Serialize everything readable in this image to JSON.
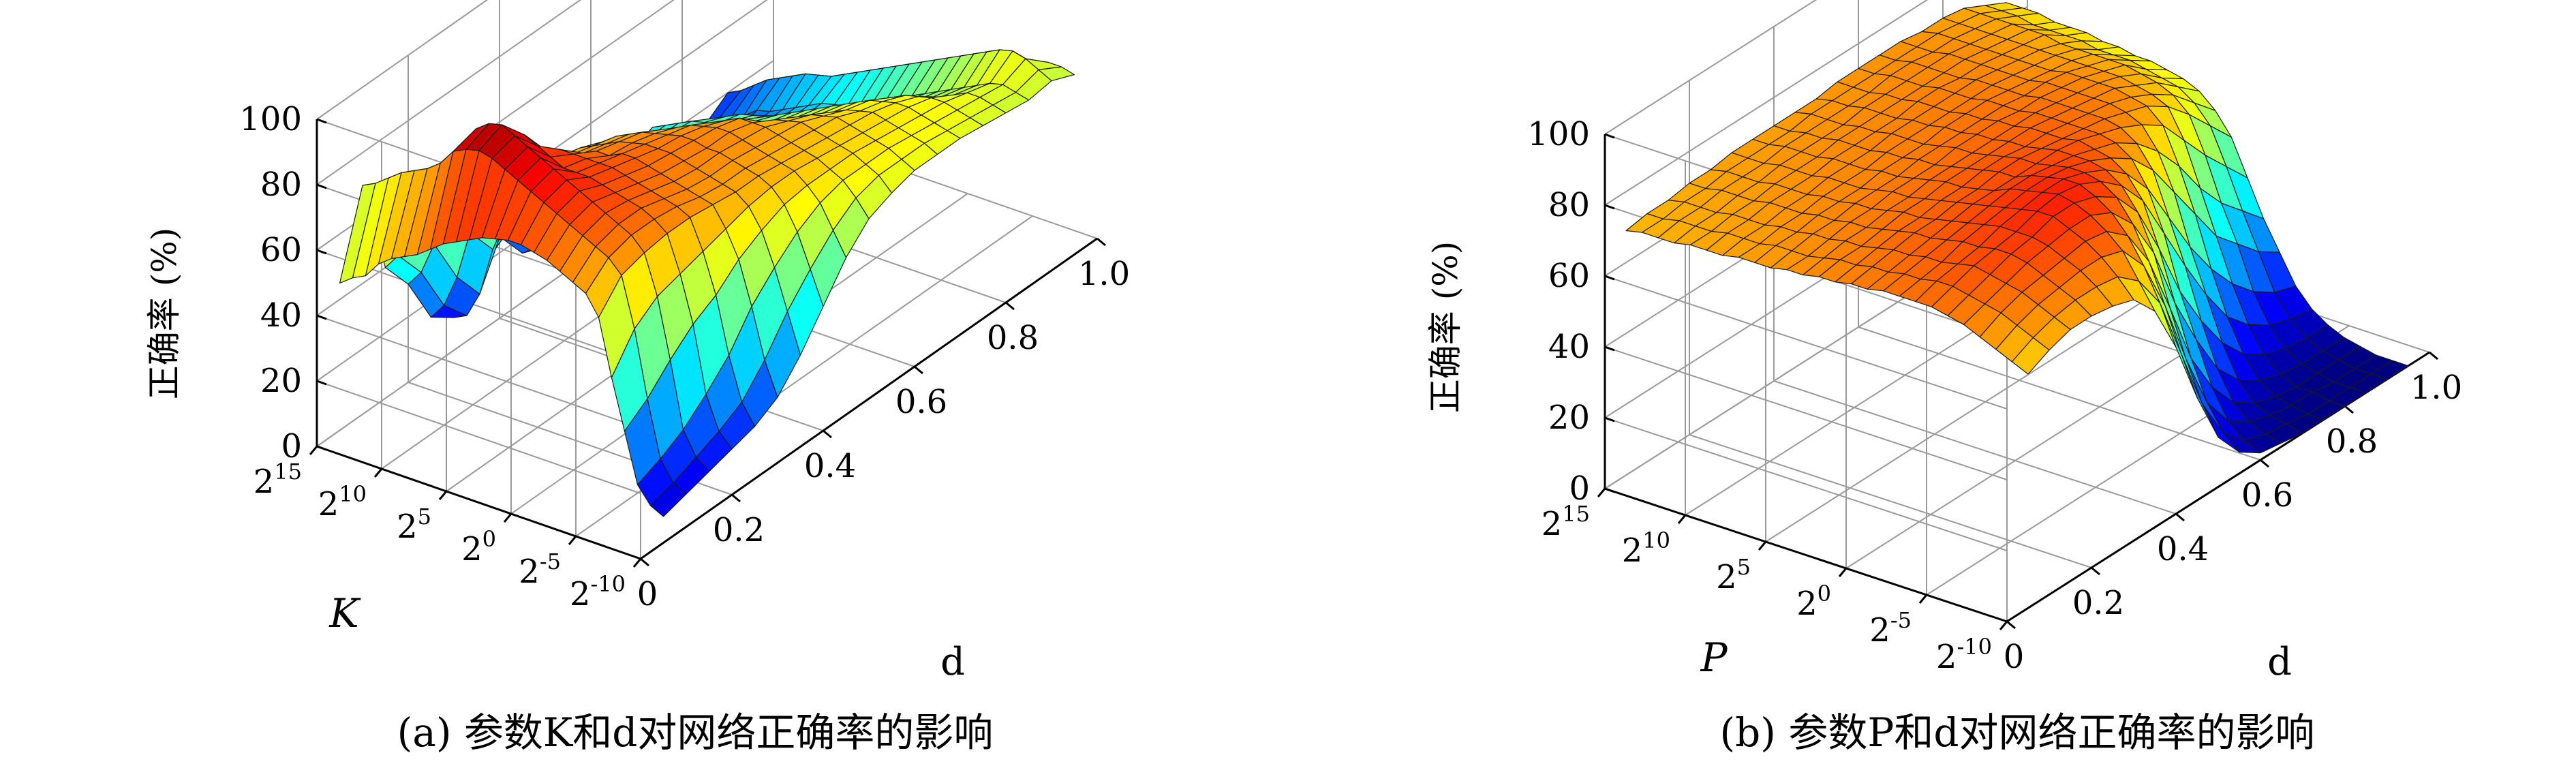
{
  "colors": {
    "grid": "#9a9a9a",
    "axis": "#000000",
    "edge": "#1a1a1a",
    "colormap": "jet"
  },
  "chart_data": [
    {
      "type": "surface3d",
      "caption": "(a) 参数K和d对网络正确率的影响",
      "zlabel": "正确率 (%)",
      "ylabel": "K",
      "xlabel": "d",
      "zlim": [
        0,
        100
      ],
      "z_ticks": [
        "0",
        "20",
        "40",
        "60",
        "80",
        "100"
      ],
      "y_ticks": [
        {
          "b": "2",
          "e": "15"
        },
        {
          "b": "2",
          "e": "10"
        },
        {
          "b": "2",
          "e": "5"
        },
        {
          "b": "2",
          "e": "0"
        },
        {
          "b": "2",
          "e": "-5"
        },
        {
          "b": "2",
          "e": "-10"
        }
      ],
      "x_ticks": [
        "0",
        "0.2",
        "0.4",
        "0.6",
        "0.8",
        "1.0"
      ],
      "d_values": [
        0.05,
        0.1,
        0.15,
        0.2,
        0.25,
        0.3,
        0.35,
        0.4,
        0.45,
        0.5,
        0.55,
        0.6,
        0.65,
        0.7,
        0.75,
        0.8,
        0.85,
        0.9,
        0.95
      ],
      "log2_param_values": [
        15,
        14,
        13,
        12,
        11,
        10,
        9,
        8,
        7,
        6,
        5,
        4,
        3,
        2,
        1,
        0,
        -1,
        -2,
        -3,
        -4,
        -5,
        -6,
        -7,
        -8,
        -9,
        -10
      ],
      "accuracy": [
        [
          45,
          70,
          40,
          30,
          15,
          10,
          20,
          25,
          15,
          12,
          15,
          20,
          25,
          20,
          15,
          10,
          15,
          20,
          10
        ],
        [
          48,
          72,
          45,
          35,
          20,
          12,
          25,
          30,
          18,
          15,
          18,
          25,
          28,
          22,
          18,
          12,
          18,
          22,
          12
        ],
        [
          50,
          75,
          55,
          45,
          30,
          20,
          35,
          35,
          25,
          20,
          22,
          30,
          32,
          28,
          22,
          15,
          20,
          25,
          15
        ],
        [
          55,
          78,
          65,
          55,
          45,
          35,
          45,
          45,
          35,
          30,
          30,
          35,
          38,
          32,
          28,
          20,
          22,
          28,
          18
        ],
        [
          58,
          80,
          72,
          65,
          55,
          45,
          50,
          50,
          42,
          38,
          35,
          40,
          40,
          35,
          30,
          22,
          25,
          30,
          20
        ],
        [
          60,
          82,
          78,
          70,
          62,
          55,
          55,
          55,
          50,
          45,
          40,
          42,
          42,
          38,
          32,
          25,
          26,
          32,
          22
        ],
        [
          62,
          85,
          85,
          75,
          68,
          62,
          60,
          58,
          55,
          50,
          45,
          45,
          44,
          40,
          35,
          28,
          28,
          34,
          24
        ],
        [
          65,
          90,
          92,
          80,
          72,
          66,
          64,
          62,
          58,
          54,
          48,
          46,
          45,
          42,
          36,
          30,
          30,
          35,
          25
        ],
        [
          68,
          92,
          95,
          85,
          76,
          70,
          68,
          65,
          62,
          58,
          52,
          48,
          46,
          44,
          38,
          32,
          32,
          36,
          26
        ],
        [
          70,
          93,
          96,
          88,
          78,
          72,
          70,
          68,
          64,
          60,
          54,
          50,
          48,
          45,
          40,
          34,
          34,
          38,
          28
        ],
        [
          72,
          92,
          94,
          86,
          80,
          74,
          72,
          70,
          66,
          62,
          56,
          52,
          50,
          46,
          42,
          36,
          35,
          40,
          30
        ],
        [
          74,
          90,
          92,
          84,
          80,
          76,
          74,
          72,
          68,
          64,
          58,
          54,
          51,
          48,
          44,
          38,
          36,
          42,
          32
        ],
        [
          75,
          88,
          90,
          82,
          80,
          76,
          75,
          73,
          70,
          66,
          60,
          56,
          52,
          50,
          46,
          40,
          38,
          44,
          34
        ],
        [
          76,
          86,
          88,
          82,
          80,
          78,
          76,
          74,
          72,
          68,
          62,
          58,
          54,
          52,
          48,
          42,
          40,
          46,
          36
        ],
        [
          76,
          84,
          86,
          82,
          80,
          78,
          76,
          75,
          73,
          70,
          64,
          60,
          56,
          54,
          50,
          44,
          42,
          48,
          38
        ],
        [
          75,
          82,
          84,
          81,
          79,
          77,
          76,
          75,
          74,
          72,
          66,
          62,
          58,
          56,
          52,
          46,
          44,
          50,
          40
        ],
        [
          74,
          80,
          82,
          80,
          78,
          76,
          75,
          74,
          74,
          72,
          68,
          64,
          60,
          58,
          54,
          48,
          46,
          52,
          42
        ],
        [
          72,
          78,
          80,
          79,
          77,
          75,
          74,
          74,
          73,
          72,
          69,
          66,
          62,
          60,
          56,
          50,
          48,
          54,
          44
        ],
        [
          70,
          76,
          78,
          78,
          76,
          74,
          73,
          73,
          72,
          71,
          70,
          67,
          64,
          62,
          58,
          52,
          50,
          56,
          46
        ],
        [
          68,
          74,
          76,
          76,
          75,
          73,
          72,
          72,
          71,
          70,
          69,
          68,
          65,
          63,
          60,
          54,
          52,
          58,
          48
        ],
        [
          62,
          70,
          72,
          73,
          73,
          72,
          71,
          71,
          70,
          69,
          68,
          67,
          66,
          64,
          61,
          56,
          54,
          60,
          50
        ],
        [
          45,
          55,
          60,
          62,
          64,
          66,
          68,
          69,
          69,
          68,
          67,
          66,
          65,
          64,
          62,
          58,
          56,
          62,
          52
        ],
        [
          30,
          35,
          42,
          48,
          52,
          58,
          62,
          65,
          66,
          66,
          66,
          65,
          64,
          63,
          62,
          60,
          58,
          63,
          54
        ],
        [
          15,
          18,
          22,
          28,
          35,
          45,
          52,
          58,
          62,
          64,
          64,
          64,
          63,
          62,
          61,
          60,
          59,
          62,
          56
        ],
        [
          10,
          12,
          15,
          18,
          22,
          30,
          40,
          48,
          55,
          60,
          62,
          62,
          62,
          61,
          60,
          59,
          58,
          60,
          56
        ],
        [
          8,
          10,
          12,
          14,
          16,
          20,
          28,
          38,
          48,
          55,
          58,
          60,
          60,
          60,
          59,
          58,
          57,
          58,
          55
        ]
      ]
    },
    {
      "type": "surface3d",
      "caption": "(b) 参数P和d对网络正确率的影响",
      "zlabel": "正确率 (%)",
      "ylabel": "P",
      "xlabel": "d",
      "zlim": [
        0,
        100
      ],
      "z_ticks": [
        "0",
        "20",
        "40",
        "60",
        "80",
        "100"
      ],
      "y_ticks": [
        {
          "b": "2",
          "e": "15"
        },
        {
          "b": "2",
          "e": "10"
        },
        {
          "b": "2",
          "e": "5"
        },
        {
          "b": "2",
          "e": "0"
        },
        {
          "b": "2",
          "e": "-5"
        },
        {
          "b": "2",
          "e": "-10"
        }
      ],
      "x_ticks": [
        "0",
        "0.2",
        "0.4",
        "0.6",
        "0.8",
        "1.0"
      ],
      "d_values": [
        0.05,
        0.1,
        0.15,
        0.2,
        0.25,
        0.3,
        0.35,
        0.4,
        0.45,
        0.5,
        0.55,
        0.6,
        0.65,
        0.7,
        0.75,
        0.8,
        0.85,
        0.9,
        0.95
      ],
      "log2_param_values": [
        15,
        14,
        13,
        12,
        11,
        10,
        9,
        8,
        7,
        6,
        5,
        4,
        3,
        2,
        1,
        0,
        -1,
        -2,
        -3,
        -4,
        -5,
        -6,
        -7,
        -8,
        -9,
        -10
      ],
      "accuracy": [
        [
          69,
          70,
          70,
          71,
          71,
          72,
          72,
          72,
          72,
          72,
          73,
          73,
          73,
          73,
          72,
          72,
          71,
          68,
          65
        ],
        [
          70,
          70,
          71,
          71,
          72,
          72,
          72,
          72,
          73,
          73,
          73,
          73,
          73,
          73,
          73,
          72,
          71,
          68,
          65
        ],
        [
          70,
          71,
          71,
          72,
          72,
          72,
          73,
          73,
          73,
          73,
          73,
          74,
          74,
          73,
          73,
          72,
          71,
          68,
          65
        ],
        [
          70,
          71,
          71,
          72,
          72,
          73,
          73,
          73,
          73,
          74,
          74,
          74,
          74,
          74,
          73,
          72,
          71,
          67,
          64
        ],
        [
          71,
          71,
          72,
          72,
          73,
          73,
          73,
          74,
          74,
          74,
          74,
          74,
          74,
          74,
          73,
          72,
          71,
          67,
          64
        ],
        [
          71,
          72,
          72,
          73,
          73,
          73,
          74,
          74,
          74,
          74,
          75,
          75,
          74,
          74,
          73,
          72,
          71,
          67,
          64
        ],
        [
          71,
          72,
          72,
          73,
          73,
          74,
          74,
          74,
          75,
          75,
          75,
          75,
          75,
          74,
          73,
          72,
          70,
          67,
          63
        ],
        [
          72,
          72,
          73,
          73,
          74,
          74,
          74,
          75,
          75,
          75,
          75,
          75,
          75,
          74,
          73,
          72,
          70,
          66,
          63
        ],
        [
          72,
          73,
          73,
          74,
          74,
          74,
          75,
          75,
          75,
          76,
          76,
          76,
          75,
          74,
          73,
          72,
          70,
          66,
          62
        ],
        [
          72,
          73,
          74,
          74,
          75,
          75,
          75,
          76,
          76,
          76,
          76,
          76,
          75,
          75,
          74,
          72,
          70,
          66,
          62
        ],
        [
          73,
          73,
          74,
          75,
          75,
          76,
          76,
          76,
          77,
          77,
          77,
          76,
          76,
          75,
          74,
          72,
          70,
          65,
          61
        ],
        [
          73,
          74,
          75,
          75,
          76,
          76,
          77,
          77,
          77,
          77,
          77,
          77,
          76,
          75,
          74,
          72,
          69,
          64,
          60
        ],
        [
          74,
          75,
          75,
          76,
          77,
          77,
          78,
          78,
          78,
          78,
          78,
          77,
          76,
          75,
          74,
          71,
          68,
          63,
          58
        ],
        [
          74,
          75,
          76,
          77,
          77,
          78,
          78,
          79,
          79,
          78,
          78,
          77,
          76,
          75,
          73,
          70,
          66,
          60,
          54
        ],
        [
          75,
          76,
          77,
          78,
          78,
          79,
          79,
          80,
          80,
          79,
          78,
          77,
          76,
          74,
          72,
          68,
          62,
          55,
          48
        ],
        [
          75,
          76,
          77,
          78,
          79,
          80,
          80,
          80,
          80,
          80,
          79,
          77,
          75,
          72,
          68,
          60,
          52,
          45,
          38
        ],
        [
          76,
          77,
          78,
          79,
          80,
          81,
          82,
          82,
          81,
          80,
          78,
          76,
          72,
          66,
          58,
          48,
          40,
          34,
          28
        ],
        [
          76,
          77,
          78,
          80,
          81,
          82,
          83,
          83,
          82,
          80,
          77,
          73,
          66,
          56,
          46,
          36,
          30,
          24,
          20
        ],
        [
          76,
          78,
          79,
          80,
          82,
          83,
          84,
          84,
          82,
          79,
          74,
          66,
          54,
          42,
          32,
          24,
          18,
          14,
          12
        ],
        [
          76,
          78,
          80,
          81,
          82,
          84,
          85,
          84,
          81,
          76,
          68,
          55,
          42,
          30,
          20,
          14,
          10,
          8,
          7
        ],
        [
          75,
          77,
          79,
          81,
          82,
          84,
          84,
          82,
          78,
          70,
          56,
          40,
          28,
          18,
          11,
          7,
          5,
          4,
          4
        ],
        [
          74,
          76,
          78,
          80,
          81,
          82,
          82,
          79,
          72,
          60,
          42,
          28,
          16,
          9,
          5,
          3,
          2,
          2,
          2
        ],
        [
          72,
          75,
          77,
          78,
          79,
          80,
          79,
          74,
          63,
          46,
          28,
          16,
          8,
          4,
          2,
          1,
          1,
          1,
          1
        ],
        [
          70,
          73,
          75,
          76,
          77,
          77,
          75,
          67,
          52,
          33,
          17,
          8,
          4,
          2,
          1,
          1,
          0,
          0,
          0
        ],
        [
          68,
          71,
          73,
          74,
          74,
          73,
          68,
          58,
          40,
          22,
          10,
          4,
          2,
          1,
          0,
          0,
          0,
          0,
          0
        ],
        [
          66,
          69,
          71,
          71,
          70,
          68,
          61,
          47,
          29,
          14,
          6,
          2,
          1,
          0,
          0,
          0,
          0,
          0,
          0
        ]
      ]
    }
  ]
}
